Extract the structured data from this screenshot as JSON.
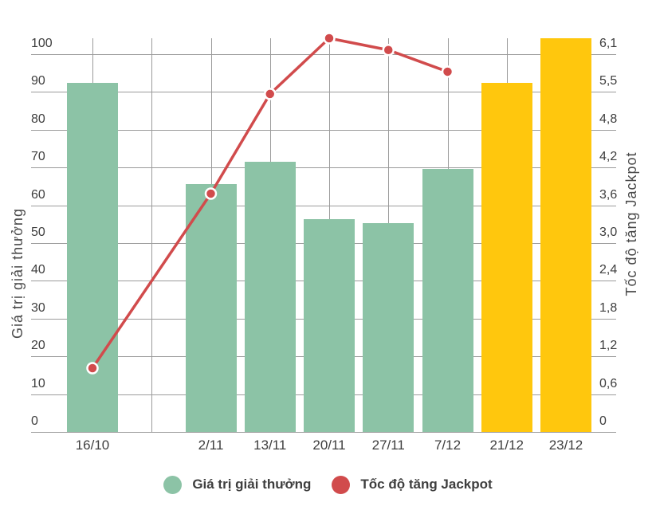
{
  "chart_data": {
    "type": "bar",
    "subtype": "combo-bar-line-dual-axis",
    "title": "",
    "categories": [
      "16/10",
      "",
      "2/11",
      "13/11",
      "20/11",
      "27/11",
      "7/12",
      "21/12",
      "23/12"
    ],
    "left_axis": {
      "label": "Giá trị giải thưởng",
      "tick_labels": [
        "0",
        "10",
        "20",
        "30",
        "40",
        "50",
        "60",
        "70",
        "80",
        "90",
        "100"
      ],
      "tick_values": [
        0,
        10,
        20,
        30,
        40,
        50,
        60,
        70,
        80,
        90,
        100
      ],
      "min": 0,
      "max": 104.2
    },
    "right_axis": {
      "label": "Tốc độ tăng Jackpot",
      "tick_labels": [
        "0",
        "0,6",
        "1,2",
        "1,8",
        "2,4",
        "3,0",
        "3,6",
        "4,2",
        "4,8",
        "5,5",
        "6,1"
      ],
      "min": 0,
      "max": 6.36
    },
    "series": [
      {
        "name": "Giá trị giải thưởng",
        "type": "bar",
        "axis": "left",
        "values": [
          92.4,
          null,
          65.5,
          71.5,
          56.3,
          55.2,
          69.7,
          92.3,
          104.2
        ],
        "bar_colors": [
          "#8CC3A6",
          null,
          "#8CC3A6",
          "#8CC3A6",
          "#8CC3A6",
          "#8CC3A6",
          "#8CC3A6",
          "#FFC70D",
          "#FFC70D"
        ]
      },
      {
        "name": "Tốc độ tăng Jackpot",
        "type": "line",
        "axis": "right",
        "values": [
          1.03,
          null,
          3.85,
          5.46,
          6.36,
          6.17,
          5.82,
          null,
          null
        ],
        "color": "#D14B4C",
        "point_fill": "#D14B4C",
        "point_border": "#FFFFFF"
      }
    ],
    "legend": [
      {
        "label": "Giá trị giải thưởng",
        "color": "#8CC3A6"
      },
      {
        "label": "Tốc độ tăng Jackpot",
        "color": "#D14B4C"
      }
    ],
    "legend_position": "bottom",
    "grid": true,
    "colors": {
      "bar_green": "#8CC3A6",
      "bar_yellow": "#FFC70D",
      "line_red": "#D14B4C",
      "grid": "#9B9B9B",
      "text": "#3E3E3E"
    }
  }
}
